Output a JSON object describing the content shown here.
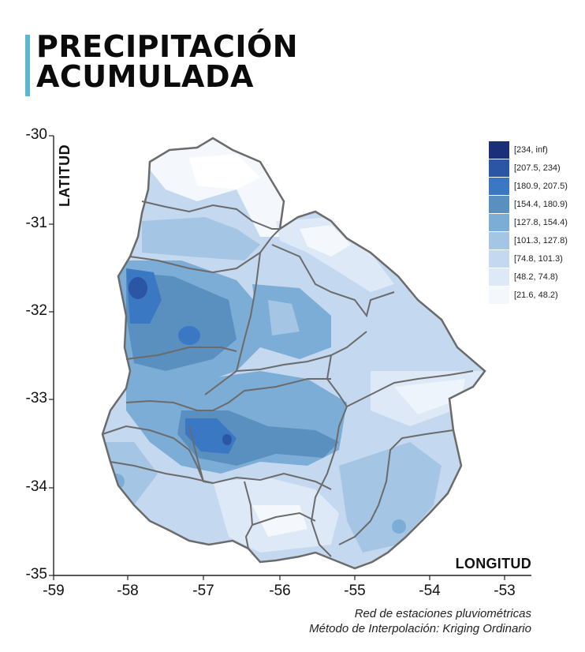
{
  "title": {
    "line1": "PRECIPITACIÓN",
    "line2": "ACUMULADA"
  },
  "axes": {
    "ylabel": "LATITUD",
    "xlabel": "LONGITUD",
    "y_ticks": [
      "-30",
      "-31",
      "-32",
      "-33",
      "-34",
      "-35"
    ],
    "x_ticks": [
      "-59",
      "-58",
      "-57",
      "-56",
      "-55",
      "-54",
      "-53"
    ],
    "xlim": [
      -59,
      -52.75
    ],
    "ylim": [
      -35,
      -30
    ]
  },
  "legend": {
    "items": [
      {
        "label": "[234, inf)",
        "color": "#1a2f7a"
      },
      {
        "label": "[207.5, 234)",
        "color": "#2a56a4"
      },
      {
        "label": "[180.9, 207.5)",
        "color": "#3b78c4"
      },
      {
        "label": "[154.4, 180.9)",
        "color": "#5a90c0"
      },
      {
        "label": "[127.8, 154.4)",
        "color": "#7cadd6"
      },
      {
        "label": "[101.3, 127.8)",
        "color": "#a4c6e4"
      },
      {
        "label": "[74.8, 101.3)",
        "color": "#c4d8ef"
      },
      {
        "label": "[48.2, 74.8)",
        "color": "#dde9f6"
      },
      {
        "label": "[21.6, 48.2)",
        "color": "#f4f8fd"
      }
    ]
  },
  "credits": {
    "line1": "Red de estaciones pluviométricas",
    "line2": "Método de Interpolación: Kriging Ordinario"
  },
  "colors": {
    "border": "#6b6b6b",
    "title_accent": "#5bb8cf"
  }
}
